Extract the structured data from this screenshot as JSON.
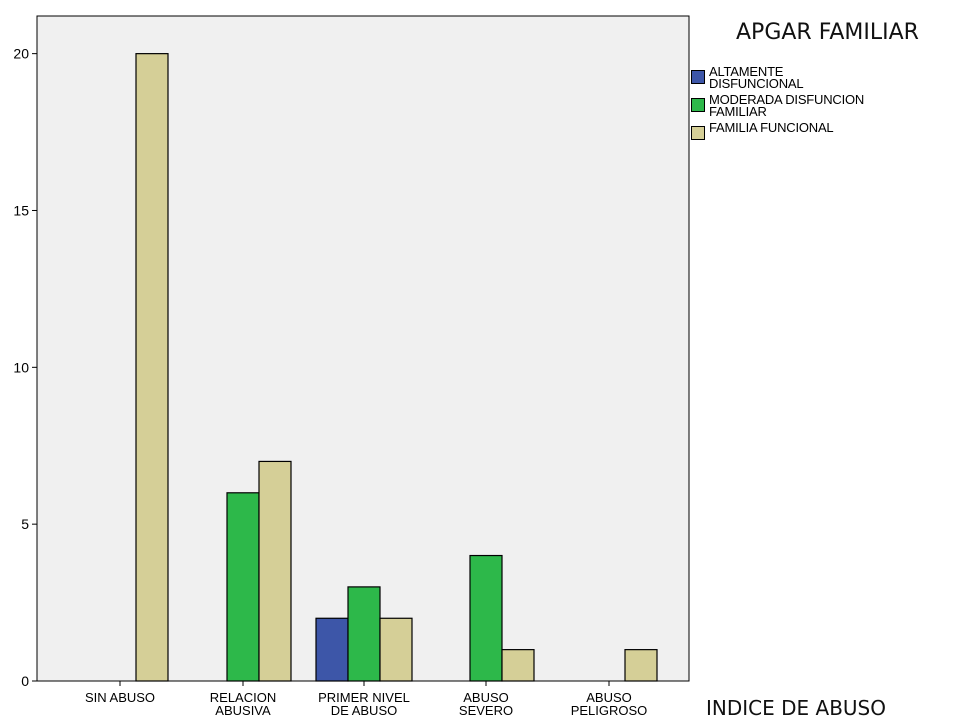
{
  "chart_data": {
    "type": "bar",
    "title": "",
    "xlabel": "INDICE DE ABUSO",
    "ylabel": "",
    "ylim": [
      0,
      21.2
    ],
    "yticks": [
      0,
      5,
      10,
      15,
      20
    ],
    "categories": [
      [
        "SIN ABUSO"
      ],
      [
        "RELACION",
        "ABUSIVA"
      ],
      [
        "PRIMER NIVEL",
        "DE ABUSO"
      ],
      [
        "ABUSO",
        "SEVERO"
      ],
      [
        "ABUSO",
        "PELIGROSO"
      ]
    ],
    "legend_title": "APGAR FAMILIAR",
    "legend_placement": "right",
    "grid": false,
    "background_color": "#f0f0f0",
    "series": [
      {
        "name": "ALTAMENTE DISFUNCIONAL",
        "legend_lines": [
          "ALTAMENTE",
          "DISFUNCIONAL"
        ],
        "color": "#3d56a8",
        "values": [
          0,
          0,
          2,
          0,
          0
        ]
      },
      {
        "name": "MODERADA DISFUNCION FAMILIAR",
        "legend_lines": [
          "MODERADA DISFUNCION",
          "FAMILIAR"
        ],
        "color": "#2db84a",
        "values": [
          0,
          6,
          3,
          4,
          0
        ]
      },
      {
        "name": "FAMILIA FUNCIONAL",
        "legend_lines": [
          "FAMILIA FUNCIONAL"
        ],
        "color": "#d5cf97",
        "values": [
          20,
          7,
          2,
          1,
          1
        ]
      }
    ]
  }
}
